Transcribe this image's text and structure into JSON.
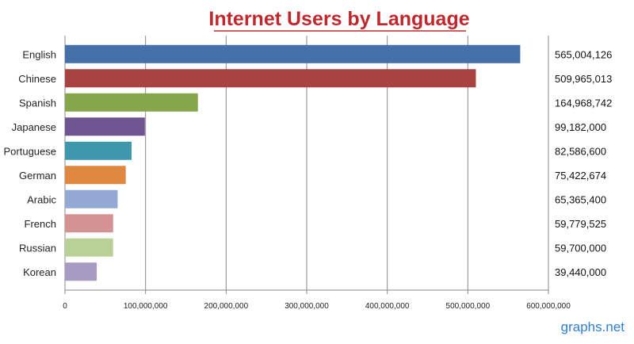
{
  "chart_data": {
    "type": "bar",
    "orientation": "horizontal",
    "title": "Internet Users by Language",
    "categories": [
      "English",
      "Chinese",
      "Spanish",
      "Japanese",
      "Portuguese",
      "German",
      "Arabic",
      "French",
      "Russian",
      "Korean"
    ],
    "values": [
      565004126,
      509965013,
      164968742,
      99182000,
      82586600,
      75422674,
      65365400,
      59779525,
      59700000,
      39440000
    ],
    "value_labels": [
      "565,004,126",
      "509,965,013",
      "164,968,742",
      "99,182,000",
      "82,586,600",
      "75,422,674",
      "65,365,400",
      "59,779,525",
      "59,700,000",
      "39,440,000"
    ],
    "colors": [
      "#4472a8",
      "#a94341",
      "#86a64a",
      "#6e5490",
      "#3d97ad",
      "#e0883f",
      "#93a9d4",
      "#d49392",
      "#b9d196",
      "#a79bc3"
    ],
    "xlim": [
      0,
      600000000
    ],
    "xticks": [
      0,
      100000000,
      200000000,
      300000000,
      400000000,
      500000000,
      600000000
    ],
    "xtick_labels": [
      "0",
      "100,000,000",
      "200,000,000",
      "300,000,000",
      "400,000,000",
      "500,000,000",
      "600,000,000"
    ],
    "grid": "vertical",
    "xlabel": "",
    "ylabel": ""
  },
  "watermark": "graphs.net"
}
